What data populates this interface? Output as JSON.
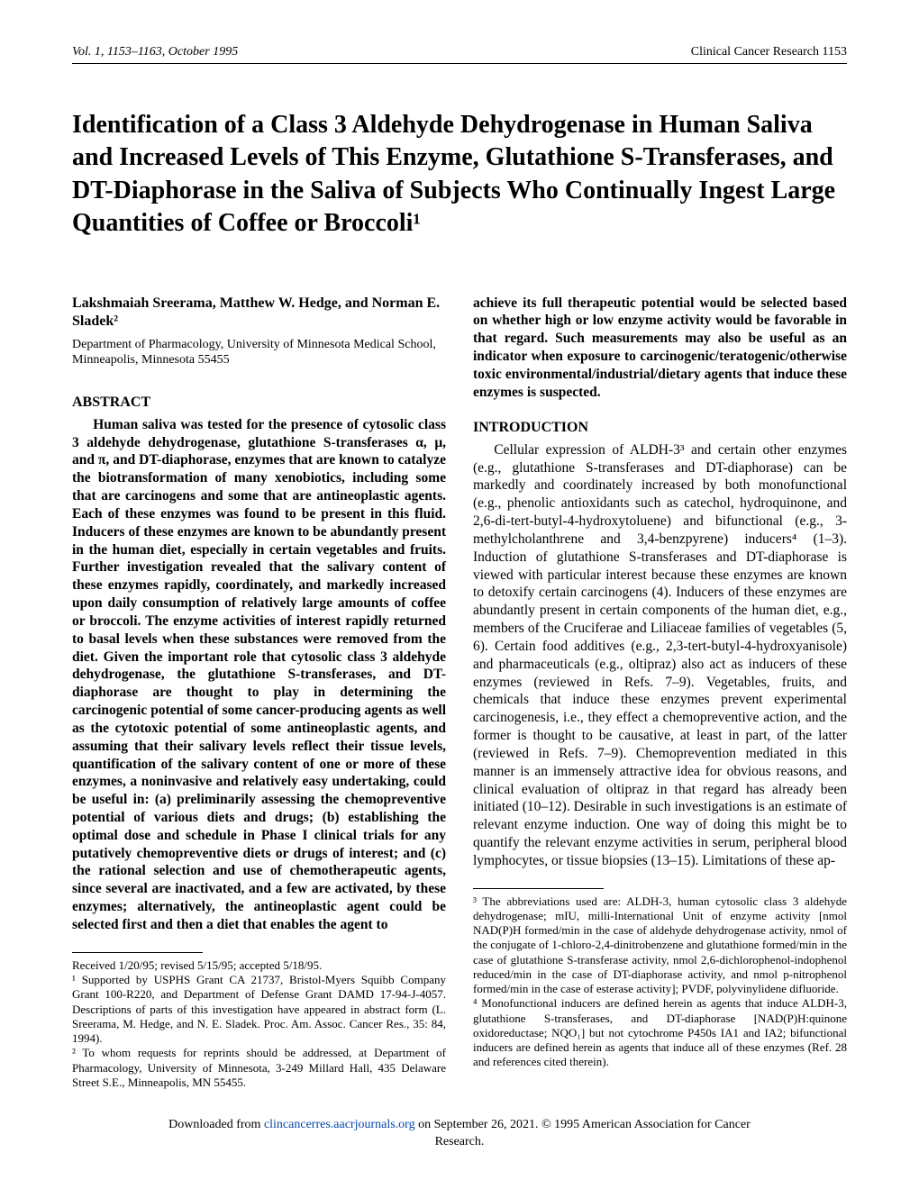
{
  "header": {
    "left": "Vol. 1, 1153–1163, October 1995",
    "right": "Clinical Cancer Research 1153"
  },
  "title": "Identification of a Class 3 Aldehyde Dehydrogenase in Human Saliva and Increased Levels of This Enzyme, Glutathione S-Transferases, and DT-Diaphorase in the Saliva of Subjects Who Continually Ingest Large Quantities of Coffee or Broccoli¹",
  "authors": "Lakshmaiah Sreerama, Matthew W. Hedge, and Norman E. Sladek²",
  "affiliation": "Department of Pharmacology, University of Minnesota Medical School, Minneapolis, Minnesota 55455",
  "abstract_heading": "ABSTRACT",
  "abstract_body": "Human saliva was tested for the presence of cytosolic class 3 aldehyde dehydrogenase, glutathione S-transferases α, μ, and π, and DT-diaphorase, enzymes that are known to catalyze the biotransformation of many xenobiotics, including some that are carcinogens and some that are antineoplastic agents. Each of these enzymes was found to be present in this fluid. Inducers of these enzymes are known to be abundantly present in the human diet, especially in certain vegetables and fruits. Further investigation revealed that the salivary content of these enzymes rapidly, coordinately, and markedly increased upon daily consumption of relatively large amounts of coffee or broccoli. The enzyme activities of interest rapidly returned to basal levels when these substances were removed from the diet. Given the important role that cytosolic class 3 aldehyde dehydrogenase, the glutathione S-transferases, and DT-diaphorase are thought to play in determining the carcinogenic potential of some cancer-producing agents as well as the cytotoxic potential of some antineoplastic agents, and assuming that their salivary levels reflect their tissue levels, quantification of the salivary content of one or more of these enzymes, a noninvasive and relatively easy undertaking, could be useful in: (a) preliminarily assessing the chemopreventive potential of various diets and drugs; (b) establishing the optimal dose and schedule in Phase I clinical trials for any putatively chemopreventive diets or drugs of interest; and (c) the rational selection and use of chemotherapeutic agents, since several are inactivated, and a few are activated, by these enzymes; alternatively, the antineoplastic agent could be selected first and then a diet that enables the agent to",
  "right_col_continuation": "achieve its full therapeutic potential would be selected based on whether high or low enzyme activity would be favorable in that regard. Such measurements may also be useful as an indicator when exposure to carcinogenic/teratogenic/otherwise toxic environmental/industrial/dietary agents that induce these enzymes is suspected.",
  "intro_heading": "INTRODUCTION",
  "intro_body": "Cellular expression of ALDH-3³ and certain other enzymes (e.g., glutathione S-transferases and DT-diaphorase) can be markedly and coordinately increased by both monofunctional (e.g., phenolic antioxidants such as catechol, hydroquinone, and 2,6-di-tert-butyl-4-hydroxytoluene) and bifunctional (e.g., 3-methylcholanthrene and 3,4-benzpyrene) inducers⁴ (1–3). Induction of glutathione S-transferases and DT-diaphorase is viewed with particular interest because these enzymes are known to detoxify certain carcinogens (4). Inducers of these enzymes are abundantly present in certain components of the human diet, e.g., members of the Cruciferae and Liliaceae families of vegetables (5, 6). Certain food additives (e.g., 2,3-tert-butyl-4-hydroxyanisole) and pharmaceuticals (e.g., oltipraz) also act as inducers of these enzymes (reviewed in Refs. 7–9). Vegetables, fruits, and chemicals that induce these enzymes prevent experimental carcinogenesis, i.e., they effect a chemopreventive action, and the former is thought to be causative, at least in part, of the latter (reviewed in Refs. 7–9). Chemoprevention mediated in this manner is an immensely attractive idea for obvious reasons, and clinical evaluation of oltipraz in that regard has already been initiated (10–12). Desirable in such investigations is an estimate of relevant enzyme induction. One way of doing this might be to quantify the relevant enzyme activities in serum, peripheral blood lymphocytes, or tissue biopsies (13–15). Limitations of these ap-",
  "left_footnotes": {
    "received": "Received 1/20/95; revised 5/15/95; accepted 5/18/95.",
    "fn1": "¹ Supported by USPHS Grant CA 21737, Bristol-Myers Squibb Company Grant 100-R220, and Department of Defense Grant DAMD 17-94-J-4057. Descriptions of parts of this investigation have appeared in abstract form (L. Sreerama, M. Hedge, and N. E. Sladek. Proc. Am. Assoc. Cancer Res., 35: 84, 1994).",
    "fn2": "² To whom requests for reprints should be addressed, at Department of Pharmacology, University of Minnesota, 3-249 Millard Hall, 435 Delaware Street S.E., Minneapolis, MN 55455."
  },
  "right_footnotes": {
    "fn3": "³ The abbreviations used are: ALDH-3, human cytosolic class 3 aldehyde dehydrogenase; mIU, milli-International Unit of enzyme activity [nmol NAD(P)H formed/min in the case of aldehyde dehydrogenase activity, nmol of the conjugate of 1-chloro-2,4-dinitrobenzene and glutathione formed/min in the case of glutathione S-transferase activity, nmol 2,6-dichlorophenol-indophenol reduced/min in the case of DT-diaphorase activity, and nmol p-nitrophenol formed/min in the case of esterase activity]; PVDF, polyvinylidene difluoride.",
    "fn4": "⁴ Monofunctional inducers are defined herein as agents that induce ALDH-3, glutathione S-transferases, and DT-diaphorase [NAD(P)H:quinone oxidoreductase; NQO₁] but not cytochrome P450s IA1 and IA2; bifunctional inducers are defined herein as agents that induce all of these enzymes (Ref. 28 and references cited therein)."
  },
  "download": {
    "prefix": "Downloaded from ",
    "link": "clincancerres.aacrjournals.org",
    "mid": " on September 26, 2021. © 1995 American Association for Cancer",
    "suffix": "Research."
  }
}
